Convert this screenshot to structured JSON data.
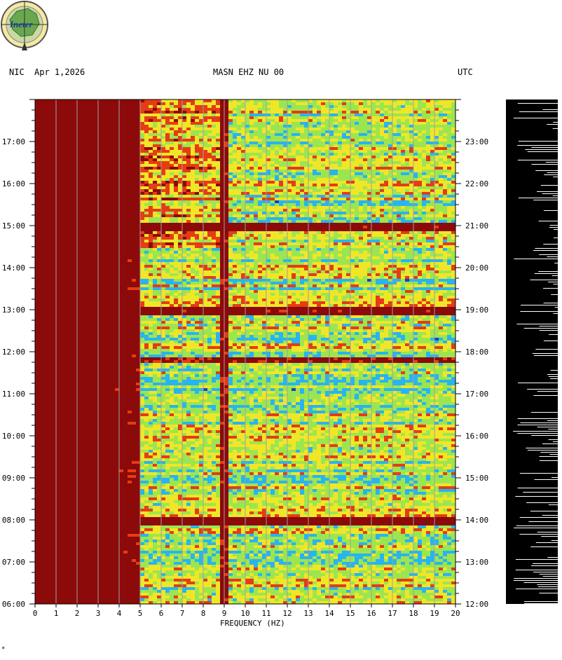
{
  "header": {
    "network_left": "NIC",
    "date": "Apr 1,2026",
    "station": "MASN EHZ NU 00",
    "timezone_right": "UTC"
  },
  "logo": {
    "text": "Ineter"
  },
  "footer": {
    "mark": "*"
  },
  "colors": {
    "low": "#1e3cc8",
    "mid_low": "#28b4f0",
    "mid": "#9be650",
    "mid_high": "#f0e628",
    "high": "#e63c14",
    "max": "#8c0a0a",
    "grid": "#a0a0a0",
    "seismogram": "#000000"
  },
  "chart_data": {
    "type": "heatmap",
    "title": "MASN EHZ NU 00",
    "xlabel": "FREQUENCY (HZ)",
    "xlim": [
      0,
      20
    ],
    "x_ticks": [
      "0",
      "1",
      "2",
      "3",
      "4",
      "5",
      "6",
      "7",
      "8",
      "9",
      "10",
      "11",
      "12",
      "13",
      "14",
      "15",
      "16",
      "17",
      "18",
      "19",
      "20"
    ],
    "y_left_ticks": [
      "17:00",
      "16:00",
      "15:00",
      "14:00",
      "13:00",
      "12:00",
      "11:00",
      "10:00",
      "09:00",
      "08:00",
      "07:00",
      "06:00"
    ],
    "y_right_ticks": [
      "23:00",
      "22:00",
      "21:00",
      "20:00",
      "19:00",
      "18:00",
      "17:00",
      "16:00",
      "15:00",
      "14:00",
      "13:00",
      "12:00"
    ],
    "left_time_label": "NIC",
    "right_time_label": "UTC",
    "ylim_local": [
      "06:00",
      "18:00"
    ],
    "ylim_utc": [
      "12:00",
      "24:00"
    ],
    "grid": true,
    "description_of_features": {
      "persistent_line_hz": 9,
      "high_energy_band_hz": [
        0,
        5
      ],
      "strong_events_local": [
        "13:00",
        "11:50",
        "08:00",
        "15:00"
      ]
    }
  }
}
